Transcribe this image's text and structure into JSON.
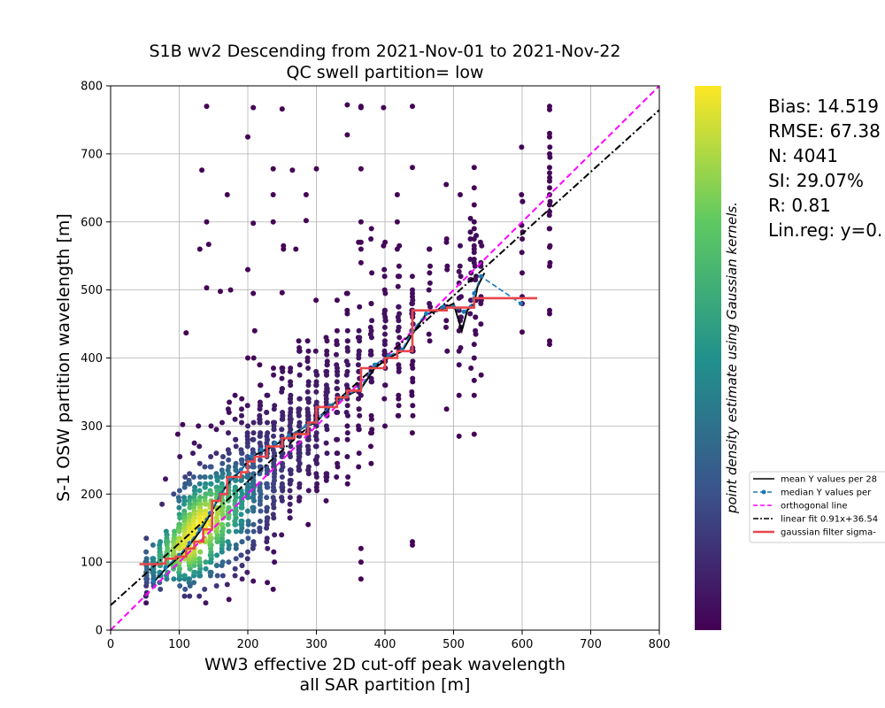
{
  "chart_data": {
    "type": "scatter",
    "title_line1": "S1B wv2 Descending from 2021-Nov-01 to 2021-Nov-22",
    "title_line2": "QC swell partition= low",
    "xlabel_line1": "WW3 effective 2D cut-off peak wavelength",
    "xlabel_line2": "all SAR partition [m]",
    "ylabel": "S-1 OSW partition wavelength [m]",
    "xlim": [
      0,
      800
    ],
    "ylim": [
      0,
      800
    ],
    "xticks": [
      "0",
      "100",
      "200",
      "300",
      "400",
      "500",
      "600",
      "700",
      "800"
    ],
    "yticks": [
      "0",
      "100",
      "200",
      "300",
      "400",
      "500",
      "600",
      "700",
      "800"
    ],
    "grid": true,
    "colorbar_label": "point density estimate using Gaussian kernels.",
    "colormap": [
      "#440154",
      "#3b528b",
      "#21918c",
      "#5ec962",
      "#fde725"
    ],
    "stats": [
      "Bias: 14.519",
      "RMSE: 67.38",
      "N: 4041",
      "SI: 29.07%",
      "R: 0.81",
      "Lin.reg: y=0."
    ],
    "legend": {
      "placement": "center-right, outside axes",
      "entries": [
        {
          "label": "mean Y values per 28",
          "color": "#000000",
          "style": "solid"
        },
        {
          "label": "median Y values per",
          "color": "#1f77b4",
          "style": "dashed-marker"
        },
        {
          "label": "orthogonal line",
          "color": "#ff00ff",
          "style": "dashed"
        },
        {
          "label": "linear fit 0.91x+36.54",
          "color": "#000000",
          "style": "dashdot"
        },
        {
          "label": "gaussian filter sigma-",
          "color": "#e8474b",
          "style": "solid-thick"
        }
      ]
    },
    "x_columns": [
      52,
      62,
      72,
      82,
      92,
      100,
      108,
      115,
      122,
      130,
      138,
      146,
      155,
      163,
      172,
      182,
      191,
      200,
      208,
      218,
      228,
      238,
      250,
      262,
      275,
      288,
      300,
      315,
      330,
      345,
      362,
      380,
      400,
      420,
      440,
      465,
      490,
      510,
      525,
      532,
      540,
      600,
      640
    ],
    "outliers": [
      [
        140,
        770
      ],
      [
        208,
        768
      ],
      [
        250,
        766
      ],
      [
        200,
        725
      ],
      [
        345,
        728
      ],
      [
        345,
        772
      ],
      [
        365,
        770
      ],
      [
        365,
        768
      ],
      [
        398,
        768
      ],
      [
        440,
        770
      ],
      [
        133,
        676
      ],
      [
        237,
        678
      ],
      [
        265,
        676
      ],
      [
        300,
        678
      ],
      [
        365,
        678
      ],
      [
        440,
        680
      ],
      [
        530,
        680
      ],
      [
        640,
        730
      ],
      [
        640,
        725
      ],
      [
        640,
        700
      ],
      [
        640,
        680
      ],
      [
        640,
        672
      ],
      [
        640,
        660
      ],
      [
        640,
        650
      ],
      [
        640,
        640
      ],
      [
        640,
        625
      ],
      [
        640,
        770
      ],
      [
        640,
        765
      ],
      [
        640,
        563
      ],
      [
        640,
        535
      ],
      [
        640,
        470
      ],
      [
        640,
        465
      ],
      [
        640,
        425
      ],
      [
        640,
        420
      ],
      [
        170,
        640
      ],
      [
        237,
        640
      ],
      [
        285,
        640
      ],
      [
        418,
        640
      ],
      [
        530,
        650
      ],
      [
        140,
        600
      ],
      [
        208,
        598
      ],
      [
        237,
        600
      ],
      [
        285,
        602
      ],
      [
        365,
        600
      ],
      [
        418,
        600
      ],
      [
        530,
        625
      ],
      [
        130,
        560
      ],
      [
        143,
        567
      ],
      [
        252,
        565
      ],
      [
        252,
        560
      ],
      [
        270,
        560
      ],
      [
        398,
        565
      ],
      [
        418,
        560
      ],
      [
        200,
        530
      ],
      [
        365,
        540
      ],
      [
        365,
        570
      ],
      [
        365,
        560
      ],
      [
        530,
        600
      ],
      [
        530,
        590
      ],
      [
        530,
        575
      ],
      [
        530,
        560
      ],
      [
        600,
        525
      ],
      [
        600,
        438
      ],
      [
        508,
        527
      ],
      [
        508,
        510
      ],
      [
        508,
        488
      ],
      [
        508,
        470
      ],
      [
        508,
        440
      ],
      [
        508,
        410
      ],
      [
        508,
        390
      ],
      [
        508,
        345
      ],
      [
        508,
        285
      ],
      [
        530,
        420
      ],
      [
        530,
        400
      ],
      [
        530,
        367
      ],
      [
        530,
        345
      ],
      [
        530,
        288
      ],
      [
        530,
        540
      ],
      [
        530,
        545
      ],
      [
        530,
        555
      ],
      [
        530,
        565
      ],
      [
        140,
        503
      ],
      [
        160,
        498
      ],
      [
        175,
        500
      ],
      [
        208,
        495
      ],
      [
        250,
        496
      ],
      [
        440,
        490
      ],
      [
        440,
        500
      ],
      [
        440,
        495
      ],
      [
        440,
        480
      ],
      [
        440,
        470
      ],
      [
        110,
        437
      ],
      [
        210,
        440
      ],
      [
        440,
        130
      ],
      [
        440,
        125
      ],
      [
        365,
        75
      ],
      [
        365,
        100
      ],
      [
        365,
        120
      ],
      [
        170,
        67
      ],
      [
        208,
        72
      ],
      [
        237,
        60
      ],
      [
        80,
        222
      ],
      [
        75,
        185
      ],
      [
        92,
        200
      ],
      [
        98,
        288
      ],
      [
        105,
        302
      ],
      [
        108,
        210
      ],
      [
        115,
        230
      ],
      [
        120,
        260
      ],
      [
        122,
        275
      ],
      [
        128,
        300
      ],
      [
        365,
        345
      ]
    ],
    "fit_lines": {
      "orthogonal": [
        [
          0,
          0
        ],
        [
          800,
          800
        ]
      ],
      "linear_fit": {
        "slope": 0.91,
        "intercept": 36.54
      },
      "mean": [
        [
          62,
          70
        ],
        [
          80,
          90
        ],
        [
          100,
          108
        ],
        [
          115,
          125
        ],
        [
          130,
          145
        ],
        [
          145,
          170
        ],
        [
          160,
          200
        ],
        [
          175,
          220
        ],
        [
          190,
          235
        ],
        [
          205,
          255
        ],
        [
          220,
          262
        ],
        [
          240,
          272
        ],
        [
          260,
          285
        ],
        [
          285,
          300
        ],
        [
          300,
          305
        ],
        [
          320,
          330
        ],
        [
          345,
          345
        ],
        [
          365,
          355
        ],
        [
          385,
          385
        ],
        [
          405,
          400
        ],
        [
          425,
          410
        ],
        [
          440,
          435
        ],
        [
          460,
          465
        ],
        [
          480,
          470
        ],
        [
          500,
          480
        ],
        [
          512,
          440
        ],
        [
          520,
          470
        ],
        [
          530,
          480
        ],
        [
          535,
          505
        ],
        [
          545,
          525
        ]
      ],
      "median": [
        [
          62,
          72
        ],
        [
          80,
          92
        ],
        [
          100,
          110
        ],
        [
          115,
          128
        ],
        [
          130,
          148
        ],
        [
          145,
          172
        ],
        [
          160,
          200
        ],
        [
          175,
          222
        ],
        [
          190,
          236
        ],
        [
          205,
          255
        ],
        [
          220,
          265
        ],
        [
          240,
          275
        ],
        [
          260,
          286
        ],
        [
          285,
          300
        ],
        [
          300,
          306
        ],
        [
          320,
          330
        ],
        [
          345,
          345
        ],
        [
          365,
          358
        ],
        [
          385,
          390
        ],
        [
          405,
          403
        ],
        [
          425,
          412
        ],
        [
          440,
          440
        ],
        [
          460,
          465
        ],
        [
          485,
          475
        ],
        [
          500,
          475
        ],
        [
          515,
          468
        ],
        [
          525,
          475
        ],
        [
          530,
          495
        ],
        [
          540,
          520
        ],
        [
          598,
          480
        ]
      ],
      "gaussian": [
        [
          42,
          97
        ],
        [
          70,
          97
        ],
        [
          80,
          98
        ],
        [
          80,
          105
        ],
        [
          95,
          105
        ],
        [
          95,
          108
        ],
        [
          110,
          108
        ],
        [
          110,
          120
        ],
        [
          122,
          120
        ],
        [
          122,
          130
        ],
        [
          135,
          130
        ],
        [
          135,
          148
        ],
        [
          148,
          148
        ],
        [
          148,
          190
        ],
        [
          160,
          190
        ],
        [
          160,
          200
        ],
        [
          170,
          200
        ],
        [
          170,
          225
        ],
        [
          190,
          225
        ],
        [
          190,
          232
        ],
        [
          200,
          232
        ],
        [
          200,
          248
        ],
        [
          210,
          248
        ],
        [
          210,
          255
        ],
        [
          228,
          255
        ],
        [
          228,
          270
        ],
        [
          250,
          270
        ],
        [
          250,
          282
        ],
        [
          268,
          282
        ],
        [
          268,
          288
        ],
        [
          288,
          288
        ],
        [
          288,
          305
        ],
        [
          300,
          305
        ],
        [
          300,
          328
        ],
        [
          330,
          328
        ],
        [
          330,
          342
        ],
        [
          345,
          342
        ],
        [
          345,
          352
        ],
        [
          365,
          352
        ],
        [
          365,
          385
        ],
        [
          400,
          385
        ],
        [
          400,
          400
        ],
        [
          418,
          400
        ],
        [
          418,
          410
        ],
        [
          440,
          410
        ],
        [
          440,
          470
        ],
        [
          490,
          470
        ],
        [
          490,
          474
        ],
        [
          530,
          474
        ],
        [
          530,
          488
        ],
        [
          622,
          488
        ]
      ]
    }
  }
}
